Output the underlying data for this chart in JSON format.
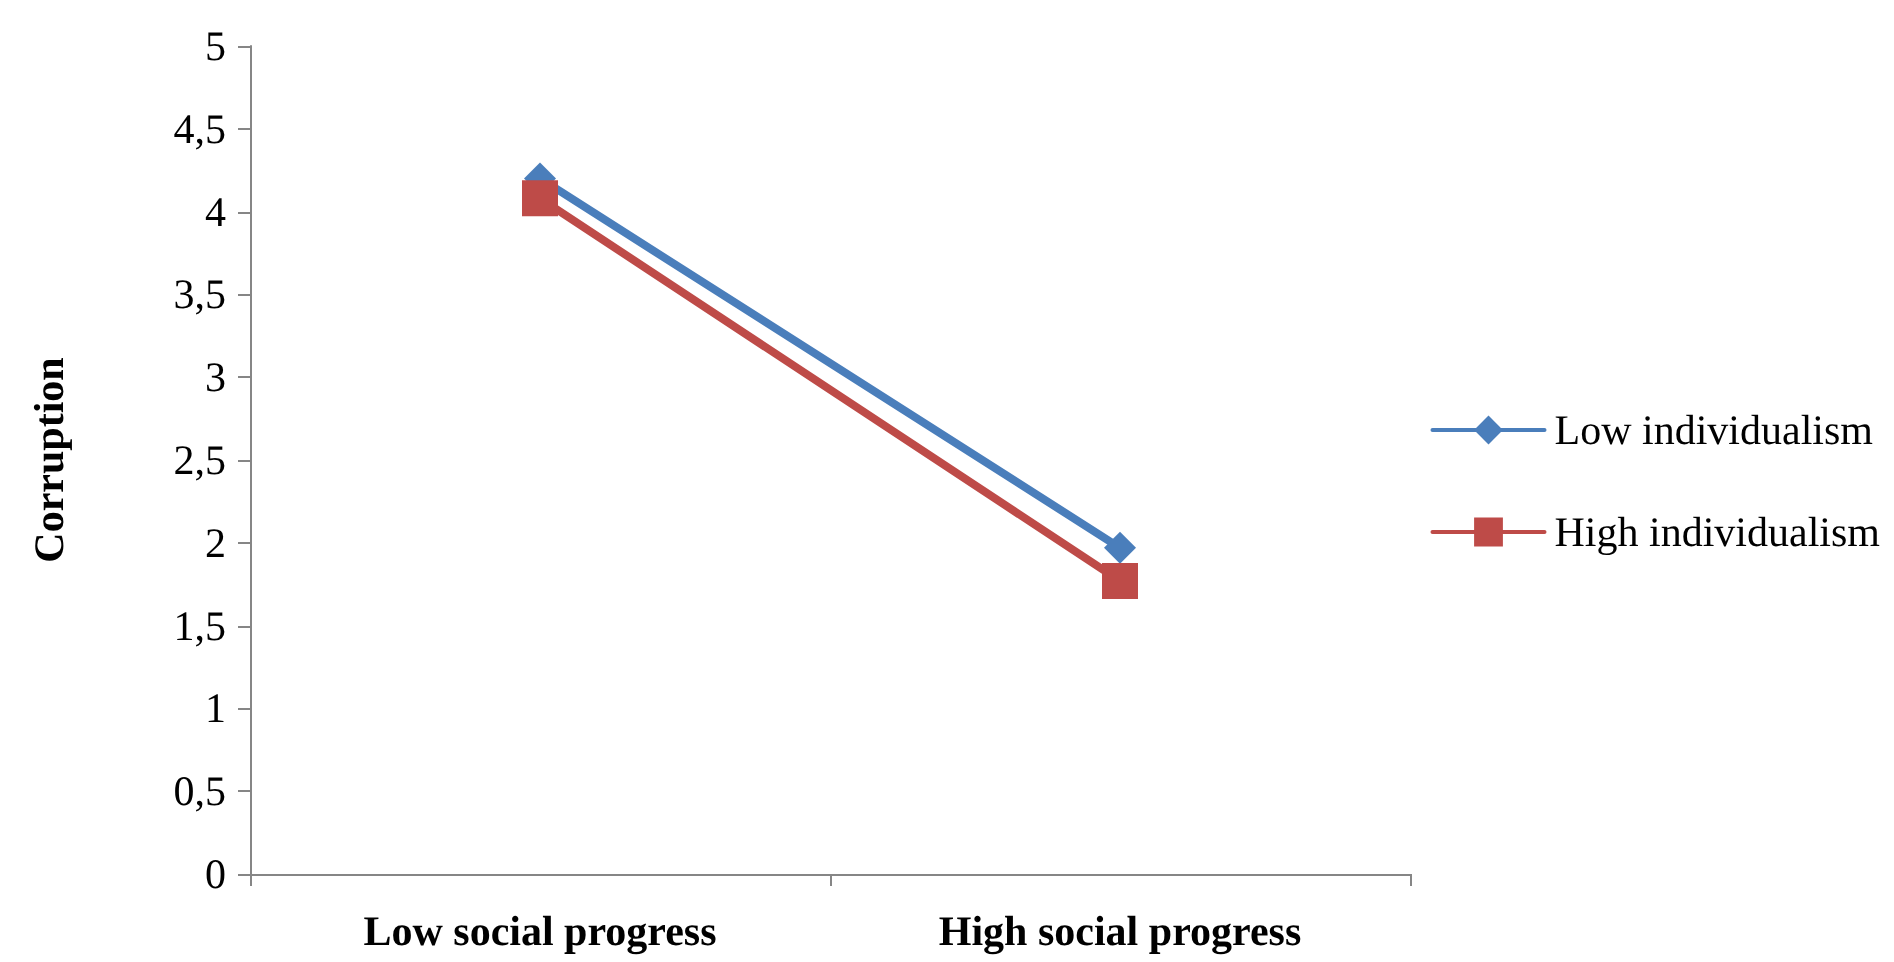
{
  "chart_data": {
    "type": "line",
    "ylabel": "Corruption",
    "categories": [
      "Low social progress",
      "High social progress"
    ],
    "series": [
      {
        "name": "Low individualism",
        "color": "#4a7ebb",
        "marker": "diamond",
        "values": [
          4.2,
          1.97
        ]
      },
      {
        "name": "High individualism",
        "color": "#be4b48",
        "marker": "square",
        "values": [
          4.08,
          1.77
        ]
      }
    ],
    "ylim": [
      0,
      5
    ],
    "yticks": [
      0,
      {
        "value": 0.5,
        "label": "0,5"
      },
      1,
      {
        "value": 1.5,
        "label": "1,5"
      },
      2,
      {
        "value": 2.5,
        "label": "2,5"
      },
      3,
      {
        "value": 3.5,
        "label": "3,5"
      },
      4,
      {
        "value": 4.5,
        "label": "4,5"
      },
      5
    ],
    "grid": false,
    "legend": "right",
    "line_style": "solid"
  }
}
